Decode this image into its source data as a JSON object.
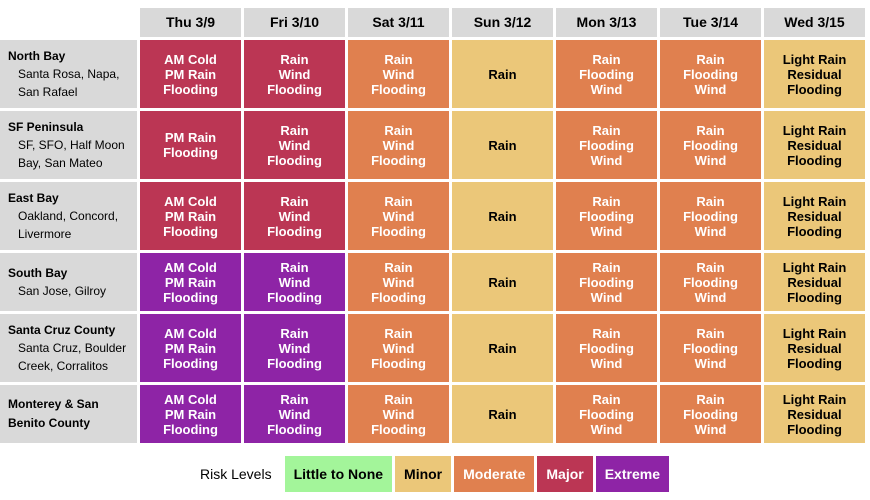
{
  "colors": {
    "little": "#a3f59a",
    "minor": "#ebc779",
    "moderate": "#e0804f",
    "major": "#bb3654",
    "extreme": "#8e24a6"
  },
  "days": [
    "Thu 3/9",
    "Fri 3/10",
    "Sat 3/11",
    "Sun 3/12",
    "Mon 3/13",
    "Tue 3/14",
    "Wed 3/15"
  ],
  "regions": [
    {
      "name": "North Bay",
      "sub": [
        "Santa Rosa, Napa,",
        "San Rafael"
      ],
      "cells": [
        {
          "level": "major",
          "lines": [
            "AM Cold",
            "PM Rain",
            "Flooding"
          ]
        },
        {
          "level": "major",
          "lines": [
            "Rain",
            "Wind",
            "Flooding"
          ]
        },
        {
          "level": "moderate",
          "lines": [
            "Rain",
            "Wind",
            "Flooding"
          ]
        },
        {
          "level": "minor",
          "lines": [
            "Rain"
          ]
        },
        {
          "level": "moderate",
          "lines": [
            "Rain",
            "Flooding",
            "Wind"
          ]
        },
        {
          "level": "moderate",
          "lines": [
            "Rain",
            "Flooding",
            "Wind"
          ]
        },
        {
          "level": "minor",
          "lines": [
            "Light Rain",
            "Residual",
            "Flooding"
          ]
        }
      ]
    },
    {
      "name": "SF Peninsula",
      "sub": [
        "SF, SFO, Half Moon",
        "Bay, San Mateo"
      ],
      "cells": [
        {
          "level": "major",
          "lines": [
            "PM Rain",
            "Flooding"
          ]
        },
        {
          "level": "major",
          "lines": [
            "Rain",
            "Wind",
            "Flooding"
          ]
        },
        {
          "level": "moderate",
          "lines": [
            "Rain",
            "Wind",
            "Flooding"
          ]
        },
        {
          "level": "minor",
          "lines": [
            "Rain"
          ]
        },
        {
          "level": "moderate",
          "lines": [
            "Rain",
            "Flooding",
            "Wind"
          ]
        },
        {
          "level": "moderate",
          "lines": [
            "Rain",
            "Flooding",
            "Wind"
          ]
        },
        {
          "level": "minor",
          "lines": [
            "Light Rain",
            "Residual",
            "Flooding"
          ]
        }
      ]
    },
    {
      "name": "East Bay",
      "sub": [
        "Oakland, Concord,",
        "Livermore"
      ],
      "cells": [
        {
          "level": "major",
          "lines": [
            "AM Cold",
            "PM Rain",
            "Flooding"
          ]
        },
        {
          "level": "major",
          "lines": [
            "Rain",
            "Wind",
            "Flooding"
          ]
        },
        {
          "level": "moderate",
          "lines": [
            "Rain",
            "Wind",
            "Flooding"
          ]
        },
        {
          "level": "minor",
          "lines": [
            "Rain"
          ]
        },
        {
          "level": "moderate",
          "lines": [
            "Rain",
            "Flooding",
            "Wind"
          ]
        },
        {
          "level": "moderate",
          "lines": [
            "Rain",
            "Flooding",
            "Wind"
          ]
        },
        {
          "level": "minor",
          "lines": [
            "Light Rain",
            "Residual",
            "Flooding"
          ]
        }
      ]
    },
    {
      "name": "South Bay",
      "sub": [
        "San Jose, Gilroy"
      ],
      "cells": [
        {
          "level": "extreme",
          "lines": [
            "AM Cold",
            "PM Rain",
            "Flooding"
          ]
        },
        {
          "level": "extreme",
          "lines": [
            "Rain",
            "Wind",
            "Flooding"
          ]
        },
        {
          "level": "moderate",
          "lines": [
            "Rain",
            "Wind",
            "Flooding"
          ]
        },
        {
          "level": "minor",
          "lines": [
            "Rain"
          ]
        },
        {
          "level": "moderate",
          "lines": [
            "Rain",
            "Flooding",
            "Wind"
          ]
        },
        {
          "level": "moderate",
          "lines": [
            "Rain",
            "Flooding",
            "Wind"
          ]
        },
        {
          "level": "minor",
          "lines": [
            "Light Rain",
            "Residual",
            "Flooding"
          ]
        }
      ]
    },
    {
      "name": "Santa Cruz County",
      "sub": [
        "Santa Cruz, Boulder",
        "Creek, Corralitos"
      ],
      "cells": [
        {
          "level": "extreme",
          "lines": [
            "AM Cold",
            "PM Rain",
            "Flooding"
          ]
        },
        {
          "level": "extreme",
          "lines": [
            "Rain",
            "Wind",
            "Flooding"
          ]
        },
        {
          "level": "moderate",
          "lines": [
            "Rain",
            "Wind",
            "Flooding"
          ]
        },
        {
          "level": "minor",
          "lines": [
            "Rain"
          ]
        },
        {
          "level": "moderate",
          "lines": [
            "Rain",
            "Flooding",
            "Wind"
          ]
        },
        {
          "level": "moderate",
          "lines": [
            "Rain",
            "Flooding",
            "Wind"
          ]
        },
        {
          "level": "minor",
          "lines": [
            "Light Rain",
            "Residual",
            "Flooding"
          ]
        }
      ]
    },
    {
      "name": "Monterey & San Benito County",
      "sub": [],
      "cells": [
        {
          "level": "extreme",
          "lines": [
            "AM Cold",
            "PM Rain",
            "Flooding"
          ]
        },
        {
          "level": "extreme",
          "lines": [
            "Rain",
            "Wind",
            "Flooding"
          ]
        },
        {
          "level": "moderate",
          "lines": [
            "Rain",
            "Wind",
            "Flooding"
          ]
        },
        {
          "level": "minor",
          "lines": [
            "Rain"
          ]
        },
        {
          "level": "moderate",
          "lines": [
            "Rain",
            "Flooding",
            "Wind"
          ]
        },
        {
          "level": "moderate",
          "lines": [
            "Rain",
            "Flooding",
            "Wind"
          ]
        },
        {
          "level": "minor",
          "lines": [
            "Light Rain",
            "Residual",
            "Flooding"
          ]
        }
      ]
    }
  ],
  "legend": {
    "title": "Risk Levels",
    "items": [
      {
        "level": "little",
        "label": "Little to None"
      },
      {
        "level": "minor",
        "label": "Minor"
      },
      {
        "level": "moderate",
        "label": "Moderate"
      },
      {
        "level": "major",
        "label": "Major"
      },
      {
        "level": "extreme",
        "label": "Extreme"
      }
    ]
  }
}
